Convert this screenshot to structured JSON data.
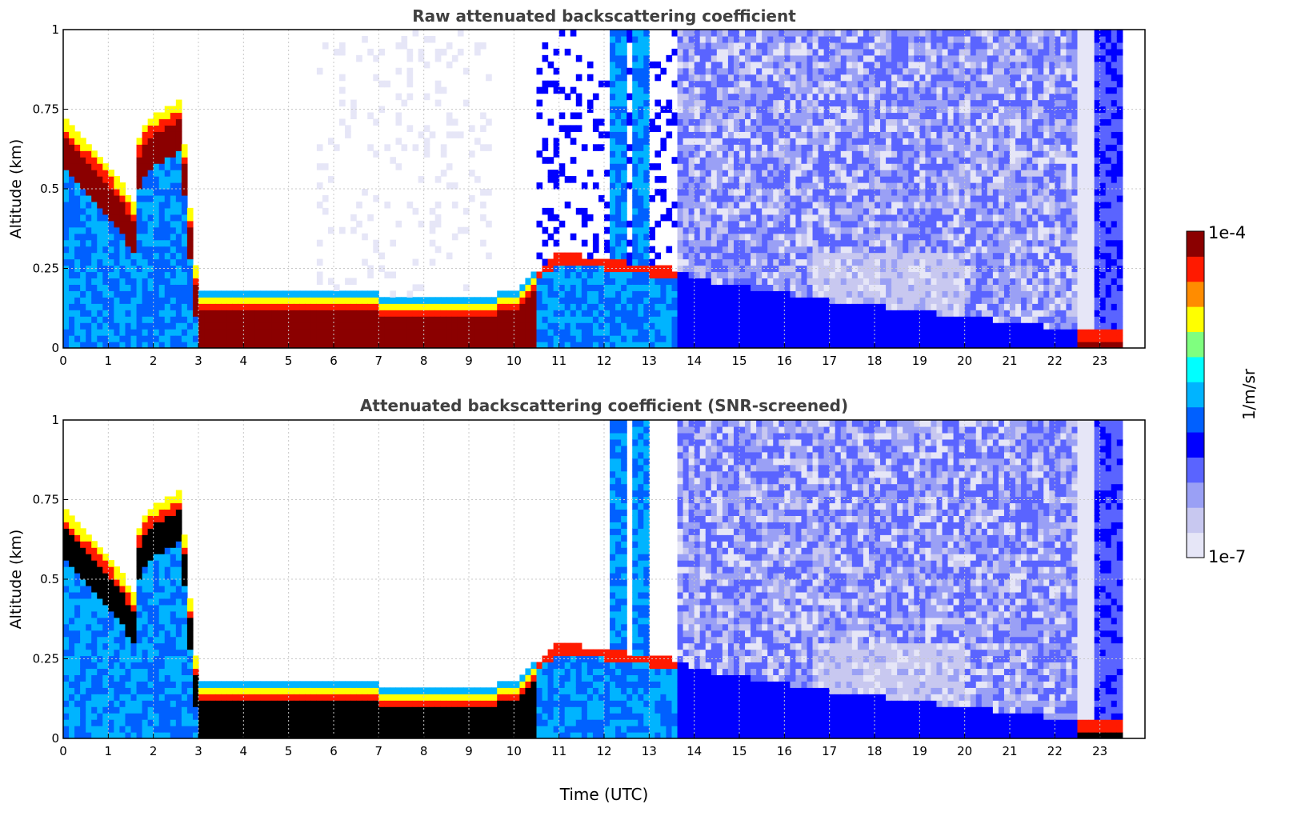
{
  "colors": {
    "jet": [
      "#e6e6f7",
      "#c8c8f0",
      "#9aa0f5",
      "#5a64ff",
      "#0000ff",
      "#0060ff",
      "#00b4ff",
      "#00ffff",
      "#7fff7f",
      "#ffff00",
      "#ff8c00",
      "#ff1a00",
      "#8b0000"
    ],
    "black": "#000000",
    "grid": "#c8c8c8"
  },
  "colorbar": {
    "label": "1/m/sr",
    "max_label": "1e-4",
    "min_label": "1e-7",
    "scale": "log",
    "range": [
      1e-07,
      0.0001
    ]
  },
  "chart_data": [
    {
      "type": "heatmap",
      "title": "Raw attenuated backscattering coefficient",
      "xlabel": "",
      "ylabel": "Altitude (km)",
      "xlim": [
        0,
        24
      ],
      "ylim": [
        0,
        1
      ],
      "xticks": [
        "0",
        "1",
        "2",
        "3",
        "4",
        "5",
        "6",
        "7",
        "8",
        "9",
        "10",
        "11",
        "12",
        "13",
        "14",
        "15",
        "16",
        "17",
        "18",
        "19",
        "20",
        "21",
        "22",
        "23"
      ],
      "yticks": [
        "0",
        "0.25",
        "0.5",
        "0.75",
        "1"
      ],
      "grid": true,
      "data_end_hour": 23.5,
      "snr_screened": false,
      "layer_top_km_by_hour": [
        {
          "t": 0,
          "top": 0.72
        },
        {
          "t": 1,
          "top": 0.58
        },
        {
          "t": 1.6,
          "top": 0.45
        },
        {
          "t": 1.7,
          "top": 0.7
        },
        {
          "t": 2.6,
          "top": 0.78
        },
        {
          "t": 2.9,
          "top": 0.3
        },
        {
          "t": 3,
          "top": 0.18
        },
        {
          "t": 6,
          "top": 0.18
        },
        {
          "t": 9,
          "top": 0.15
        },
        {
          "t": 10,
          "top": 0.18
        },
        {
          "t": 11,
          "top": 0.3
        },
        {
          "t": 13.5,
          "top": 0.25
        },
        {
          "t": 14,
          "top": 0.22
        },
        {
          "t": 17,
          "top": 0.15
        },
        {
          "t": 20,
          "top": 0.1
        },
        {
          "t": 22.4,
          "top": 0.06
        },
        {
          "t": 23.5,
          "top": 0.05
        }
      ]
    },
    {
      "type": "heatmap",
      "title": "Attenuated backscattering coefficient (SNR-screened)",
      "xlabel": "Time (UTC)",
      "ylabel": "Altitude (km)",
      "xlim": [
        0,
        24
      ],
      "ylim": [
        0,
        1
      ],
      "xticks": [
        "0",
        "1",
        "2",
        "3",
        "4",
        "5",
        "6",
        "7",
        "8",
        "9",
        "10",
        "11",
        "12",
        "13",
        "14",
        "15",
        "16",
        "17",
        "18",
        "19",
        "20",
        "21",
        "22",
        "23"
      ],
      "yticks": [
        "0",
        "0.25",
        "0.5",
        "0.75",
        "1"
      ],
      "grid": true,
      "data_end_hour": 23.5,
      "snr_screened": true
    }
  ]
}
